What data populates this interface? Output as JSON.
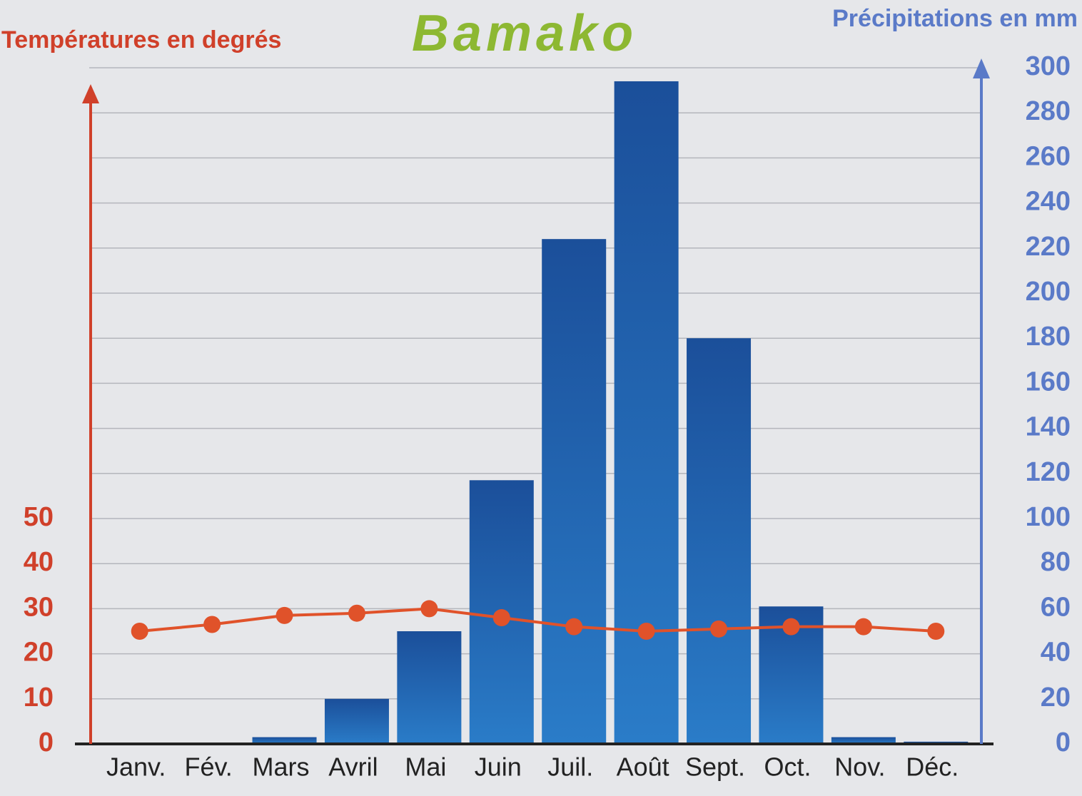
{
  "chart_data": {
    "type": "bar",
    "title": "Bamako",
    "y_label": "Températures en degrés",
    "y2_label": "Précipitations en mm",
    "categories": [
      "Janv.",
      "Fév.",
      "Mars",
      "Avril",
      "Mai",
      "Juin",
      "Juil.",
      "Août",
      "Sept.",
      "Oct.",
      "Nov.",
      "Déc."
    ],
    "series": [
      {
        "type": "bar",
        "axis": "y2",
        "color": "#1f5ea8",
        "values": [
          0,
          0,
          3,
          20,
          50,
          117,
          224,
          294,
          180,
          61,
          3,
          1
        ]
      },
      {
        "type": "line",
        "axis": "y",
        "color": "#e0522a",
        "values": [
          25,
          26.5,
          28.5,
          29,
          30,
          28,
          26,
          25,
          25.5,
          26,
          26,
          25
        ]
      }
    ],
    "ylim": [
      0,
      150
    ],
    "yticks": [
      0,
      10,
      20,
      30,
      40,
      50
    ],
    "y_color": "#d0402a",
    "y2lim": [
      0,
      300
    ],
    "y2ticks": [
      0,
      20,
      40,
      60,
      80,
      100,
      120,
      140,
      160,
      180,
      200,
      220,
      240,
      260,
      280,
      300
    ],
    "y2_color": "#5a7ac8",
    "title_color": "#8db832",
    "grid": true
  }
}
